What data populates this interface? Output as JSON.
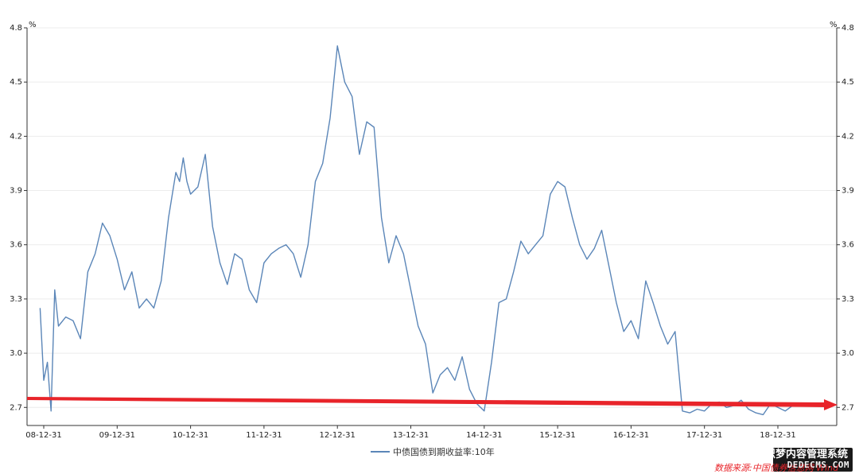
{
  "chart_data": {
    "type": "line",
    "unit_left": "%",
    "unit_right": "%",
    "ylim": [
      2.6,
      4.8
    ],
    "y_ticks": [
      "4.8",
      "4.5",
      "4.2",
      "3.9",
      "3.6",
      "3.3",
      "3.0",
      "2.7"
    ],
    "x_ticks": [
      "08-12-31",
      "09-12-31",
      "10-12-31",
      "11-12-31",
      "12-12-31",
      "13-12-31",
      "14-12-31",
      "15-12-31",
      "16-12-31",
      "17-12-31",
      "18-12-31"
    ],
    "grid": "horizontal",
    "legend_position": "bottom-center",
    "series": [
      {
        "name": "中债国债到期收益率:10年",
        "color": "#5b86b8",
        "x": [
          -0.05,
          0.0,
          0.05,
          0.1,
          0.15,
          0.2,
          0.3,
          0.4,
          0.5,
          0.6,
          0.7,
          0.8,
          0.9,
          1.0,
          1.1,
          1.2,
          1.3,
          1.4,
          1.5,
          1.6,
          1.7,
          1.8,
          1.85,
          1.9,
          1.95,
          2.0,
          2.1,
          2.2,
          2.3,
          2.4,
          2.5,
          2.6,
          2.7,
          2.8,
          2.9,
          3.0,
          3.1,
          3.2,
          3.3,
          3.4,
          3.5,
          3.6,
          3.7,
          3.8,
          3.9,
          4.0,
          4.1,
          4.2,
          4.3,
          4.4,
          4.5,
          4.6,
          4.7,
          4.8,
          4.9,
          5.0,
          5.1,
          5.2,
          5.3,
          5.4,
          5.5,
          5.6,
          5.7,
          5.8,
          5.9,
          6.0,
          6.1,
          6.2,
          6.3,
          6.4,
          6.5,
          6.6,
          6.7,
          6.8,
          6.9,
          7.0,
          7.1,
          7.2,
          7.3,
          7.4,
          7.5,
          7.6,
          7.7,
          7.8,
          7.9,
          8.0,
          8.1,
          8.2,
          8.3,
          8.4,
          8.5,
          8.6,
          8.7,
          8.8,
          8.9,
          9.0,
          9.1,
          9.2,
          9.3,
          9.4,
          9.5,
          9.6,
          9.7,
          9.8,
          9.9,
          10.0,
          10.1,
          10.2,
          10.3,
          10.4,
          10.5,
          10.6,
          10.65,
          10.75
        ],
        "values": [
          3.25,
          2.85,
          2.95,
          2.68,
          3.35,
          3.15,
          3.2,
          3.18,
          3.08,
          3.45,
          3.55,
          3.72,
          3.65,
          3.52,
          3.35,
          3.45,
          3.25,
          3.3,
          3.25,
          3.4,
          3.75,
          4.0,
          3.95,
          4.08,
          3.95,
          3.88,
          3.92,
          4.1,
          3.7,
          3.5,
          3.38,
          3.55,
          3.52,
          3.35,
          3.28,
          3.5,
          3.55,
          3.58,
          3.6,
          3.55,
          3.42,
          3.6,
          3.95,
          4.05,
          4.3,
          4.7,
          4.5,
          4.42,
          4.1,
          4.28,
          4.25,
          3.75,
          3.5,
          3.65,
          3.55,
          3.35,
          3.15,
          3.05,
          2.78,
          2.88,
          2.92,
          2.85,
          2.98,
          2.8,
          2.72,
          2.68,
          2.95,
          3.28,
          3.3,
          3.45,
          3.62,
          3.55,
          3.6,
          3.65,
          3.88,
          3.95,
          3.92,
          3.75,
          3.6,
          3.52,
          3.58,
          3.68,
          3.48,
          3.28,
          3.12,
          3.18,
          3.08,
          3.4,
          3.28,
          3.15,
          3.05,
          3.12,
          2.68,
          2.67,
          2.69,
          2.68,
          2.72,
          2.73,
          2.7,
          2.71,
          2.74,
          2.69,
          2.67,
          2.66,
          2.72,
          2.7,
          2.68,
          2.71,
          2.66,
          2.74,
          2.7,
          2.72,
          2.68,
          2.7
        ]
      }
    ]
  },
  "annotation": {
    "source": "数据来源:中国债券信息网 Wind"
  },
  "watermark": {
    "title": "织梦内容管理系统",
    "site": "DEDECMS.COM"
  }
}
